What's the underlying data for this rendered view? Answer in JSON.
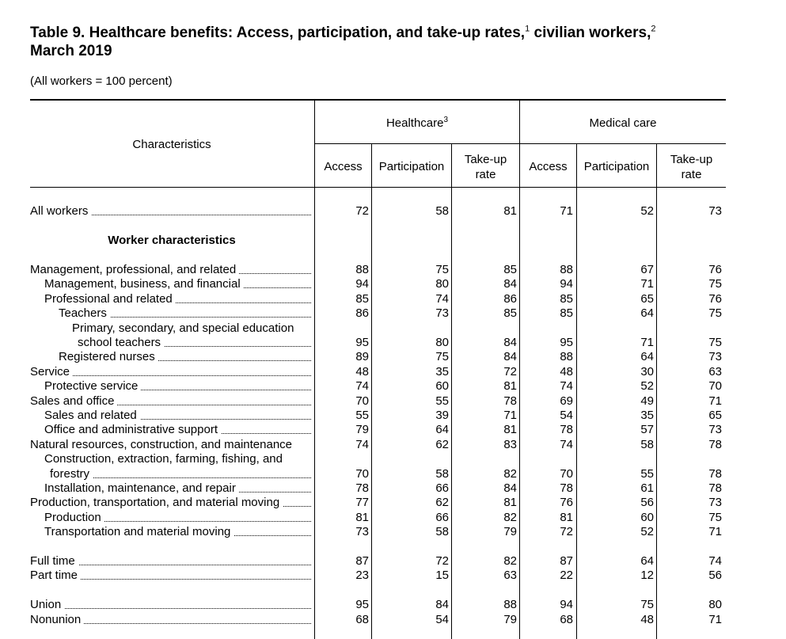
{
  "title": {
    "line1": "Table 9. Healthcare benefits: Access, participation, and take-up rates,",
    "fn1": "1",
    "mid": " civilian workers,",
    "fn2": "2",
    "line2": "March 2019"
  },
  "subtitle": "(All workers = 100 percent)",
  "headers": {
    "characteristics": "Characteristics",
    "healthcare": "Healthcare",
    "healthcare_fn": "3",
    "medical_care": "Medical care",
    "access": "Access",
    "participation": "Participation",
    "takeup_1": "Take-up",
    "takeup_2": "rate"
  },
  "section_worker": "Worker characteristics",
  "rows": [
    {
      "label": "All workers",
      "indent": 0,
      "dots": true,
      "values": [
        "72",
        "58",
        "81",
        "71",
        "52",
        "73"
      ]
    },
    {
      "label": "Management, professional, and related",
      "indent": 0,
      "dots": true,
      "values": [
        "88",
        "75",
        "85",
        "88",
        "67",
        "76"
      ]
    },
    {
      "label": "Management, business, and financial",
      "indent": 1,
      "dots": true,
      "values": [
        "94",
        "80",
        "84",
        "94",
        "71",
        "75"
      ]
    },
    {
      "label": "Professional and related",
      "indent": 1,
      "dots": true,
      "values": [
        "85",
        "74",
        "86",
        "85",
        "65",
        "76"
      ]
    },
    {
      "label": "Teachers",
      "indent": 2,
      "dots": true,
      "values": [
        "86",
        "73",
        "85",
        "85",
        "64",
        "75"
      ]
    },
    {
      "label": "Primary, secondary, and special education",
      "indent": 3,
      "dots": false,
      "values": [
        "",
        "",
        "",
        "",
        "",
        ""
      ]
    },
    {
      "label": "school teachers",
      "indent": 4,
      "dots": true,
      "values": [
        "95",
        "80",
        "84",
        "95",
        "71",
        "75"
      ]
    },
    {
      "label": "Registered nurses",
      "indent": 2,
      "dots": true,
      "values": [
        "89",
        "75",
        "84",
        "88",
        "64",
        "73"
      ]
    },
    {
      "label": "Service",
      "indent": 0,
      "dots": true,
      "values": [
        "48",
        "35",
        "72",
        "48",
        "30",
        "63"
      ]
    },
    {
      "label": "Protective service",
      "indent": 1,
      "dots": true,
      "values": [
        "74",
        "60",
        "81",
        "74",
        "52",
        "70"
      ]
    },
    {
      "label": "Sales and office",
      "indent": 0,
      "dots": true,
      "values": [
        "70",
        "55",
        "78",
        "69",
        "49",
        "71"
      ]
    },
    {
      "label": "Sales and related",
      "indent": 1,
      "dots": true,
      "values": [
        "55",
        "39",
        "71",
        "54",
        "35",
        "65"
      ]
    },
    {
      "label": "Office and administrative support",
      "indent": 1,
      "dots": true,
      "values": [
        "79",
        "64",
        "81",
        "78",
        "57",
        "73"
      ]
    },
    {
      "label": "Natural resources, construction, and maintenance",
      "indent": 0,
      "dots": false,
      "values": [
        "74",
        "62",
        "83",
        "74",
        "58",
        "78"
      ]
    },
    {
      "label": "Construction, extraction, farming, fishing, and",
      "indent": 1,
      "dots": false,
      "values": [
        "",
        "",
        "",
        "",
        "",
        ""
      ]
    },
    {
      "label": "forestry",
      "indent": 5,
      "dots": true,
      "values": [
        "70",
        "58",
        "82",
        "70",
        "55",
        "78"
      ]
    },
    {
      "label": "Installation, maintenance, and repair",
      "indent": 1,
      "dots": true,
      "values": [
        "78",
        "66",
        "84",
        "78",
        "61",
        "78"
      ]
    },
    {
      "label": "Production, transportation, and material moving",
      "indent": 0,
      "dots": true,
      "values": [
        "77",
        "62",
        "81",
        "76",
        "56",
        "73"
      ]
    },
    {
      "label": "Production",
      "indent": 1,
      "dots": true,
      "values": [
        "81",
        "66",
        "82",
        "81",
        "60",
        "75"
      ]
    },
    {
      "label": "Transportation and material moving",
      "indent": 1,
      "dots": true,
      "values": [
        "73",
        "58",
        "79",
        "72",
        "52",
        "71"
      ]
    },
    {
      "label": "Full time",
      "indent": 0,
      "dots": true,
      "values": [
        "87",
        "72",
        "82",
        "87",
        "64",
        "74"
      ]
    },
    {
      "label": "Part time",
      "indent": 0,
      "dots": true,
      "values": [
        "23",
        "15",
        "63",
        "22",
        "12",
        "56"
      ]
    },
    {
      "label": "Union",
      "indent": 0,
      "dots": true,
      "values": [
        "95",
        "84",
        "88",
        "94",
        "75",
        "80"
      ]
    },
    {
      "label": "Nonunion",
      "indent": 0,
      "dots": true,
      "values": [
        "68",
        "54",
        "79",
        "68",
        "48",
        "71"
      ]
    }
  ]
}
